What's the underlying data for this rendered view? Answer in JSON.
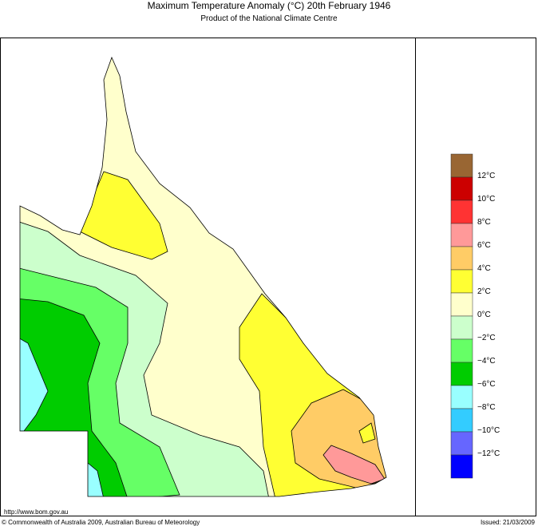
{
  "title": "Maximum Temperature Anomaly (°C)  20th February 1946",
  "subtitle": "Product of the National Climate Centre",
  "legend": {
    "colors": [
      "#996633",
      "#cc0000",
      "#ff3333",
      "#ff9999",
      "#ffcc66",
      "#ffff33",
      "#ffffcc",
      "#ccffcc",
      "#66ff66",
      "#00cc00",
      "#99ffff",
      "#33ccff",
      "#6666ff",
      "#0000ff"
    ],
    "labels": [
      "12°C",
      "10°C",
      "8°C",
      "6°C",
      "4°C",
      "2°C",
      "0°C",
      "−2°C",
      "−4°C",
      "−6°C",
      "−8°C",
      "−10°C",
      "−12°C"
    ]
  },
  "footer": {
    "url": "http://www.bom.gov.au",
    "copyright": "© Commonwealth of Australia 2009, Australian Bureau of Meteorology",
    "issued": "Issued: 21/03/2009"
  }
}
